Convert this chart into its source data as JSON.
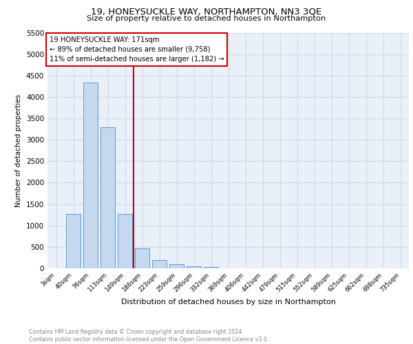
{
  "title": "19, HONEYSUCKLE WAY, NORTHAMPTON, NN3 3QE",
  "subtitle": "Size of property relative to detached houses in Northampton",
  "xlabel": "Distribution of detached houses by size in Northampton",
  "ylabel": "Number of detached properties",
  "bar_labels": [
    "3sqm",
    "40sqm",
    "76sqm",
    "113sqm",
    "149sqm",
    "186sqm",
    "223sqm",
    "259sqm",
    "296sqm",
    "332sqm",
    "369sqm",
    "406sqm",
    "442sqm",
    "479sqm",
    "515sqm",
    "552sqm",
    "589sqm",
    "625sqm",
    "662sqm",
    "698sqm",
    "735sqm"
  ],
  "bar_values": [
    0,
    1270,
    4340,
    3290,
    1270,
    470,
    200,
    90,
    55,
    30,
    0,
    0,
    0,
    0,
    0,
    0,
    0,
    0,
    0,
    0,
    0
  ],
  "bar_color": "#c5d8ed",
  "bar_edge_color": "#5b9bd5",
  "vline_x": 4.5,
  "vline_color": "#cc0000",
  "ylim": [
    0,
    5500
  ],
  "yticks": [
    0,
    500,
    1000,
    1500,
    2000,
    2500,
    3000,
    3500,
    4000,
    4500,
    5000,
    5500
  ],
  "annotation_text": "19 HONEYSUCKLE WAY: 171sqm\n← 89% of detached houses are smaller (9,758)\n11% of semi-detached houses are larger (1,182) →",
  "annotation_box_color": "#ffffff",
  "annotation_box_edge": "#cc0000",
  "footer_line1": "Contains HM Land Registry data © Crown copyright and database right 2024.",
  "footer_line2": "Contains public sector information licensed under the Open Government Licence v3.0.",
  "grid_color": "#d0d8e8",
  "background_color": "#eaf0f8"
}
